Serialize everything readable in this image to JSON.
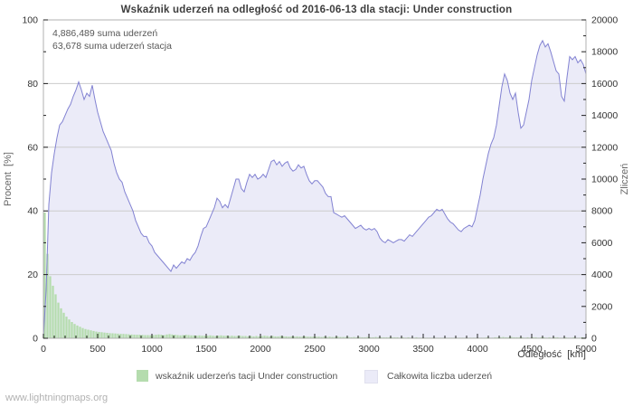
{
  "page": {
    "watermark": "www.lightningmaps.org"
  },
  "chart_data": {
    "type": "area",
    "title": "Wskaźnik uderzeń na odległość od 2016-06-13 dla stacji: Under construction",
    "annotations": {
      "total_sum": "4,886,489 suma uderzeń",
      "station_sum": "63,678 suma uderzeń stacja"
    },
    "xlabel": "Odległość  [km]",
    "ylabel_left": "Procent  [%]",
    "ylabel_right": "Zliczeń",
    "xlim": [
      0,
      5000
    ],
    "ylim_left": [
      0,
      100
    ],
    "ylim_right": [
      0,
      20000
    ],
    "x_major_step": 500,
    "x_minor_step": 100,
    "y_left_major_step": 20,
    "y_left_minor_step": 10,
    "y_right_major_step": 2000,
    "y_right_minor_step": 1000,
    "grid": true,
    "legend_position": "bottom",
    "series": [
      {
        "name": "wskaźnik uderzeńs tacji Under construction",
        "type": "bar",
        "axis": "left",
        "units": "percent",
        "bin_km": 25,
        "values": [
          39.5,
          26.5,
          19.5,
          16.5,
          13.8,
          11.2,
          9.4,
          8.0,
          6.8,
          5.9,
          5.1,
          4.5,
          4.0,
          3.6,
          3.2,
          2.9,
          2.7,
          2.5,
          2.3,
          2.1,
          2.0,
          1.9,
          1.8,
          1.7,
          1.6,
          1.55,
          1.5,
          1.45,
          1.4,
          1.35,
          1.3,
          1.25,
          1.2,
          1.15,
          1.1,
          1.1,
          1.05,
          1.0,
          1.0,
          0.95,
          1.0,
          1.1,
          1.2,
          1.1,
          1.0,
          1.2,
          1.3,
          1.2,
          1.1,
          1.0,
          0.9,
          1.0,
          1.1,
          1.0,
          0.9,
          0.9,
          0.8,
          0.9,
          0.8,
          0.8,
          0.8,
          0.9,
          0.8,
          0.7,
          0.8,
          0.9,
          0.8,
          0.8,
          0.7,
          0.8,
          0.7,
          0.7,
          0.8,
          0.7,
          0.7,
          0.6,
          0.7,
          0.6,
          0.7,
          0.6,
          0.7,
          0.8,
          0.7,
          0.6,
          0.7,
          0.6,
          0.6,
          0.7,
          0.6,
          0.6,
          0.5,
          0.6,
          0.5,
          0.6,
          0.5,
          0.5,
          0.6,
          0.5,
          0.5,
          0.5,
          0.5,
          0.5,
          0.4,
          0.5,
          0.4,
          0.5,
          0.4,
          0.4,
          0.5,
          0.4,
          0.4,
          0.4,
          0.4,
          0.3,
          0.4,
          0.3,
          0.4,
          0.3,
          0.3,
          0.4,
          0.3,
          0.3,
          0.4,
          0.3,
          0.3,
          0.3,
          0.3,
          0.3,
          0.3,
          0.3,
          0.3,
          0.2,
          0.3,
          0.2,
          0.3,
          0.2,
          0.2,
          0.3,
          0.2,
          0.2,
          0.2,
          0.2,
          0.2,
          0.2,
          0.2,
          0.2,
          0.2,
          0.2,
          0.2,
          0.2,
          0.2,
          0.2,
          0.2,
          0.2,
          0.2,
          0.2,
          0.2,
          0.2,
          0.2,
          0.2,
          0.2,
          0.2,
          0.2,
          0.3,
          0.2,
          0.2,
          0.3,
          0.3,
          0.3,
          0.4,
          0.3,
          0.3,
          0.4,
          0.3,
          0.3,
          0.3,
          0.3,
          0.2,
          0.3,
          0.2,
          0.3,
          0.3,
          0.2,
          0.3,
          0.3,
          0.2,
          0.3,
          0.2,
          0.3,
          0.3,
          0.2,
          0.2,
          0.3,
          0.2,
          0.2,
          0.3,
          0.2,
          0.2,
          0.3,
          0.2
        ]
      },
      {
        "name": "Całkowita liczba uderzeń",
        "type": "area-line",
        "axis": "right",
        "units": "count",
        "step_km": 25,
        "values": [
          100,
          3000,
          8400,
          10400,
          11600,
          12600,
          13400,
          13600,
          14000,
          14400,
          14700,
          15200,
          15600,
          16100,
          15600,
          15000,
          15400,
          15200,
          15900,
          15000,
          14200,
          13600,
          13000,
          12600,
          12200,
          11800,
          11000,
          10400,
          10000,
          9800,
          9200,
          8800,
          8400,
          8000,
          7400,
          7000,
          6600,
          6400,
          6400,
          6000,
          5800,
          5400,
          5200,
          5000,
          4800,
          4600,
          4400,
          4200,
          4600,
          4400,
          4600,
          4800,
          4700,
          5000,
          4900,
          5200,
          5400,
          5800,
          6400,
          6900,
          7000,
          7400,
          7800,
          8200,
          8800,
          8600,
          8200,
          8400,
          8200,
          8800,
          9400,
          10000,
          10000,
          9400,
          9200,
          9800,
          10300,
          10100,
          10300,
          10000,
          10100,
          10300,
          10100,
          10600,
          11100,
          11200,
          10900,
          11100,
          10800,
          11000,
          11100,
          10700,
          10500,
          10600,
          10900,
          10700,
          10800,
          10300,
          9900,
          9700,
          9900,
          9900,
          9700,
          9500,
          9100,
          8900,
          8900,
          7900,
          7800,
          7700,
          7600,
          7700,
          7500,
          7300,
          7100,
          6900,
          7000,
          7100,
          6900,
          6800,
          6900,
          6800,
          6900,
          6700,
          6300,
          6100,
          6000,
          6200,
          6100,
          6000,
          6100,
          6200,
          6200,
          6100,
          6300,
          6500,
          6400,
          6600,
          6800,
          7000,
          7200,
          7400,
          7600,
          7700,
          7900,
          8100,
          8000,
          8100,
          7800,
          7500,
          7300,
          7200,
          7000,
          6800,
          6700,
          6900,
          7000,
          7100,
          7000,
          7400,
          8200,
          9000,
          10000,
          10800,
          11600,
          12200,
          12600,
          13400,
          14600,
          15800,
          16600,
          16200,
          15400,
          15000,
          15400,
          14200,
          13200,
          13400,
          14200,
          15000,
          16200,
          17000,
          17800,
          18400,
          18700,
          18300,
          18500,
          18000,
          17400,
          16800,
          16600,
          15200,
          14900,
          16400,
          17700,
          17500,
          17700,
          17300,
          17500,
          17200,
          16600
        ]
      }
    ],
    "x_tick_labels": [
      "0",
      "500",
      "1000",
      "1500",
      "2000",
      "2500",
      "3000",
      "3500",
      "4000",
      "4500",
      "5000"
    ],
    "y_left_tick_labels": [
      "0",
      "20",
      "40",
      "60",
      "80",
      "100"
    ],
    "y_right_tick_labels": [
      "0",
      "2000",
      "4000",
      "6000",
      "8000",
      "10000",
      "12000",
      "14000",
      "16000",
      "18000",
      "20000"
    ]
  },
  "colors": {
    "station_fill": "#b5dcae",
    "total_fill": "#ebebf8",
    "total_line": "#8282d2",
    "grid": "#cccccc",
    "frame": "#b0b0b0",
    "tick": "#222222",
    "tick_label": "#333333"
  }
}
